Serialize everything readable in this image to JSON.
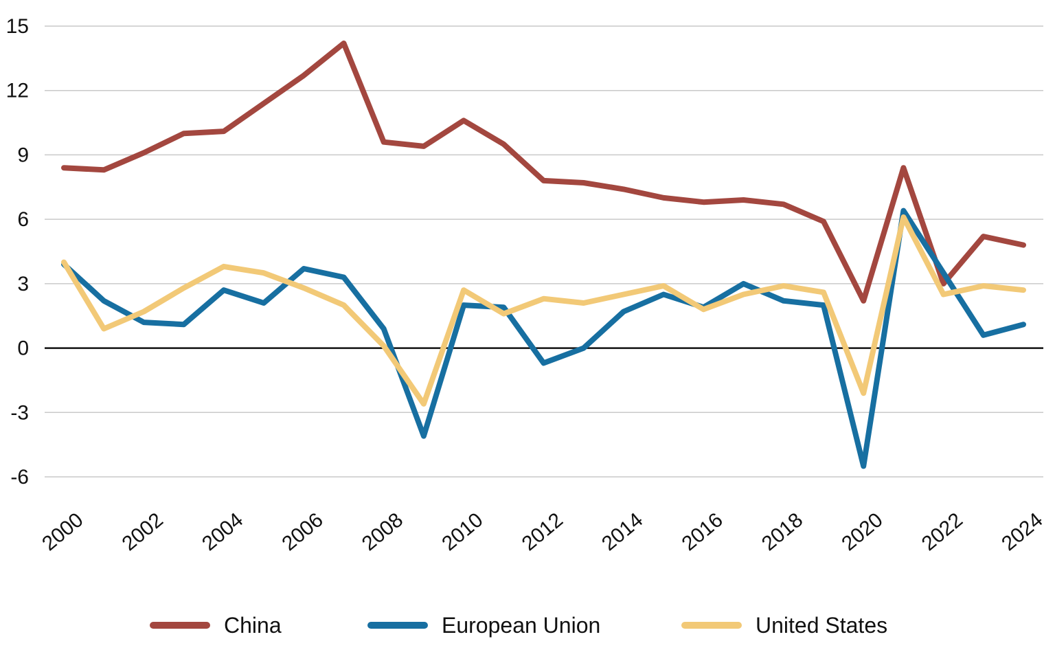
{
  "chart_data": {
    "type": "line",
    "title": "",
    "xlabel": "",
    "ylabel": "",
    "x": [
      2000,
      2001,
      2002,
      2003,
      2004,
      2005,
      2006,
      2007,
      2008,
      2009,
      2010,
      2011,
      2012,
      2013,
      2014,
      2015,
      2016,
      2017,
      2018,
      2019,
      2020,
      2021,
      2022,
      2023,
      2024
    ],
    "x_tick_labels": [
      "2000",
      "2002",
      "2004",
      "2006",
      "2008",
      "2010",
      "2012",
      "2014",
      "2016",
      "2018",
      "2020",
      "2022",
      "2024"
    ],
    "y_tick_labels": [
      "15",
      "12",
      "9",
      "6",
      "3",
      "0",
      "-3",
      "-6"
    ],
    "ylim": [
      -6,
      15
    ],
    "grid": true,
    "legend_position": "bottom",
    "series": [
      {
        "name": "China",
        "color": "#a3473f",
        "values": [
          8.4,
          8.3,
          9.1,
          10.0,
          10.1,
          11.4,
          12.7,
          14.2,
          9.6,
          9.4,
          10.6,
          9.5,
          7.8,
          7.7,
          7.4,
          7.0,
          6.8,
          6.9,
          6.7,
          5.9,
          2.2,
          8.4,
          3.0,
          5.2,
          4.8
        ]
      },
      {
        "name": "European Union",
        "color": "#176fa1",
        "values": [
          3.9,
          2.2,
          1.2,
          1.1,
          2.7,
          2.1,
          3.7,
          3.3,
          0.9,
          -4.1,
          2.0,
          1.9,
          -0.7,
          0.0,
          1.7,
          2.5,
          1.9,
          3.0,
          2.2,
          2.0,
          -5.5,
          6.4,
          3.5,
          0.6,
          1.1
        ]
      },
      {
        "name": "United States",
        "color": "#f2c977",
        "values": [
          4.0,
          0.9,
          1.7,
          2.8,
          3.8,
          3.5,
          2.8,
          2.0,
          0.1,
          -2.6,
          2.7,
          1.6,
          2.3,
          2.1,
          2.5,
          2.9,
          1.8,
          2.5,
          2.9,
          2.6,
          -2.1,
          6.1,
          2.5,
          2.9,
          2.7
        ]
      }
    ]
  }
}
